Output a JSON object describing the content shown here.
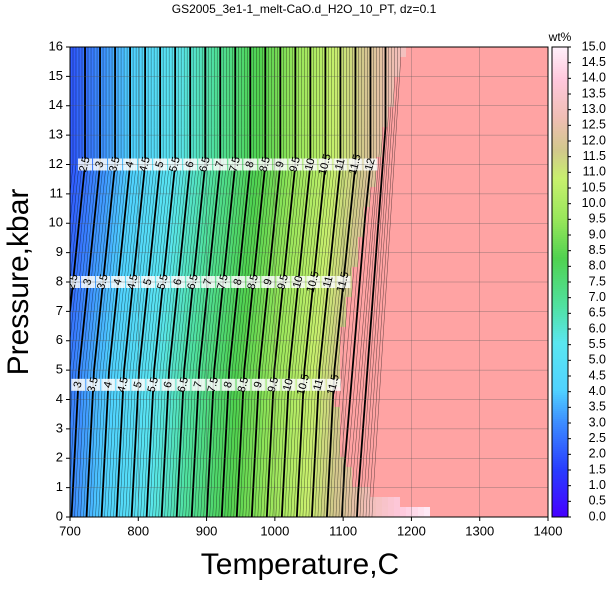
{
  "chart_data": {
    "type": "contour",
    "title": "GS2005_3e1-1_melt-CaO.d_H2O_10_PT, dz=0.1",
    "xlabel": "Temperature,C",
    "ylabel": "Pressure,kbar",
    "xlim": [
      700,
      1400
    ],
    "xticks": [
      700,
      800,
      900,
      1000,
      1100,
      1200,
      1300,
      1400
    ],
    "ylim": [
      0,
      16
    ],
    "yticks": [
      0,
      1,
      2,
      3,
      4,
      5,
      6,
      7,
      8,
      9,
      10,
      11,
      12,
      13,
      14,
      15,
      16
    ],
    "grid": true,
    "colorbar_label": "wt%",
    "zlim": [
      0,
      15
    ],
    "zticks": [
      {
        "value": 0,
        "label": "0.0"
      },
      {
        "value": 0.5,
        "label": "0.5"
      },
      {
        "value": 1,
        "label": "1.0"
      },
      {
        "value": 1.5,
        "label": "1.5"
      },
      {
        "value": 2,
        "label": "2.0"
      },
      {
        "value": 2.5,
        "label": "2.5"
      },
      {
        "value": 3,
        "label": "3.0"
      },
      {
        "value": 3.5,
        "label": "3.5"
      },
      {
        "value": 4,
        "label": "4.0"
      },
      {
        "value": 4.5,
        "label": "4.5"
      },
      {
        "value": 5,
        "label": "5.0"
      },
      {
        "value": 5.5,
        "label": "5.5"
      },
      {
        "value": 6,
        "label": "6.0"
      },
      {
        "value": 6.5,
        "label": "6.5"
      },
      {
        "value": 7,
        "label": "7.0"
      },
      {
        "value": 7.5,
        "label": "7.5"
      },
      {
        "value": 8,
        "label": "8.0"
      },
      {
        "value": 8.5,
        "label": "8.5"
      },
      {
        "value": 9,
        "label": "9.0"
      },
      {
        "value": 9.5,
        "label": "9.5"
      },
      {
        "value": 10,
        "label": "10.0"
      },
      {
        "value": 10.5,
        "label": "10.5"
      },
      {
        "value": 11,
        "label": "11.0"
      },
      {
        "value": 11.5,
        "label": "11.5"
      },
      {
        "value": 12,
        "label": "12.0"
      },
      {
        "value": 12.5,
        "label": "12.5"
      },
      {
        "value": 13,
        "label": "13.0"
      },
      {
        "value": 13.5,
        "label": "13.5"
      },
      {
        "value": 14,
        "label": "14.0"
      },
      {
        "value": 14.5,
        "label": "14.5"
      },
      {
        "value": 15,
        "label": "15.0"
      }
    ],
    "contour_levels": [
      2.5,
      3,
      3.5,
      4,
      4.5,
      5,
      5.5,
      6,
      6.5,
      7,
      7.5,
      8,
      8.5,
      9,
      9.5,
      10,
      10.5,
      11,
      11.5,
      12,
      12.5
    ]
  }
}
